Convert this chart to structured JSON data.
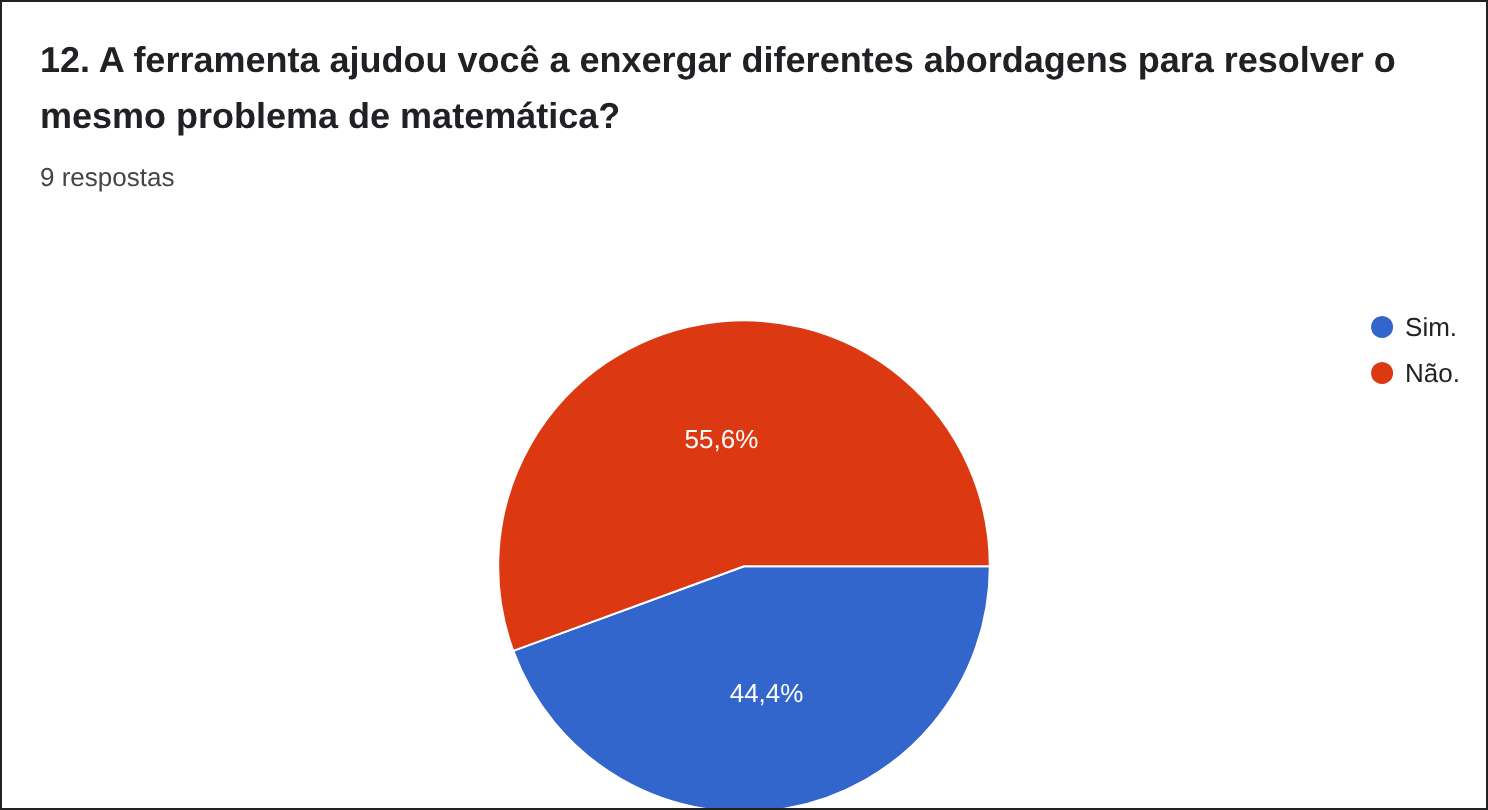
{
  "chart_data": {
    "type": "pie",
    "title": "12. A ferramenta ajudou você a enxergar diferentes abordagens para resolver o mesmo problema de matemática?",
    "subtitle": "9 respostas",
    "categories": [
      "Sim.",
      "Não."
    ],
    "values": [
      44.4,
      55.6
    ],
    "colors": [
      "#3366cc",
      "#dc3912"
    ],
    "value_labels": [
      "44,4%",
      "55,6%"
    ],
    "legend": "right"
  }
}
